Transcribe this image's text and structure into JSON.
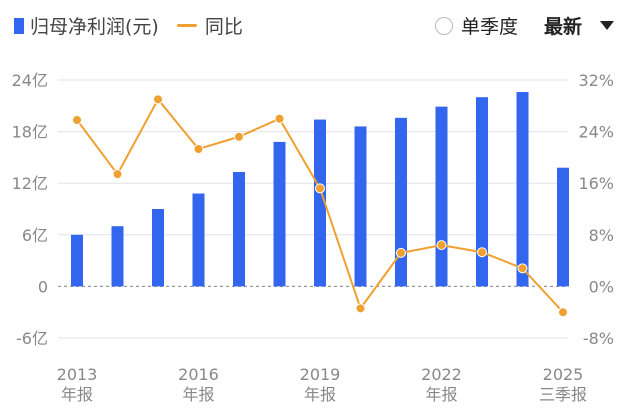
{
  "legend": {
    "series1": "归母净利润(元)",
    "series2": "同比"
  },
  "controls": {
    "quarterly_label": "单季度",
    "selector_value": "最新"
  },
  "colors": {
    "bar": "#3366ee",
    "line": "#f0a030",
    "grid": "#e3e3e3",
    "zero": "#999999"
  },
  "chart_data": {
    "type": "bar",
    "categories": [
      "2013",
      "2014",
      "2015",
      "2016",
      "2017",
      "2018",
      "2019",
      "2020",
      "2021",
      "2022",
      "2023",
      "2024",
      "2025"
    ],
    "x_tick_labels": [
      {
        "year": "2013",
        "sub": "年报"
      },
      {
        "year": "2016",
        "sub": "年报"
      },
      {
        "year": "2019",
        "sub": "年报"
      },
      {
        "year": "2022",
        "sub": "年报"
      },
      {
        "year": "2025",
        "sub": "三季报"
      }
    ],
    "series": [
      {
        "name": "归母净利润(元)",
        "axis": "left",
        "values": [
          6.0,
          7.0,
          9.0,
          10.8,
          13.3,
          16.8,
          19.4,
          18.6,
          19.6,
          20.9,
          22.0,
          22.6,
          13.8
        ]
      },
      {
        "name": "同比",
        "axis": "right",
        "type": "line",
        "values": [
          25.8,
          17.4,
          29.0,
          21.3,
          23.2,
          26.0,
          15.2,
          -3.4,
          5.2,
          6.4,
          5.3,
          2.8,
          -4.0
        ]
      }
    ],
    "ylim_left": [
      -6,
      24
    ],
    "yticks_left": [
      "-6亿",
      "0",
      "6亿",
      "12亿",
      "18亿",
      "24亿"
    ],
    "yticks_left_values": [
      -6,
      0,
      6,
      12,
      18,
      24
    ],
    "ylim_right": [
      -8,
      32
    ],
    "yticks_right": [
      "-8%",
      "0%",
      "8%",
      "16%",
      "24%",
      "32%"
    ],
    "grid": true,
    "legend_position": "top-left"
  }
}
